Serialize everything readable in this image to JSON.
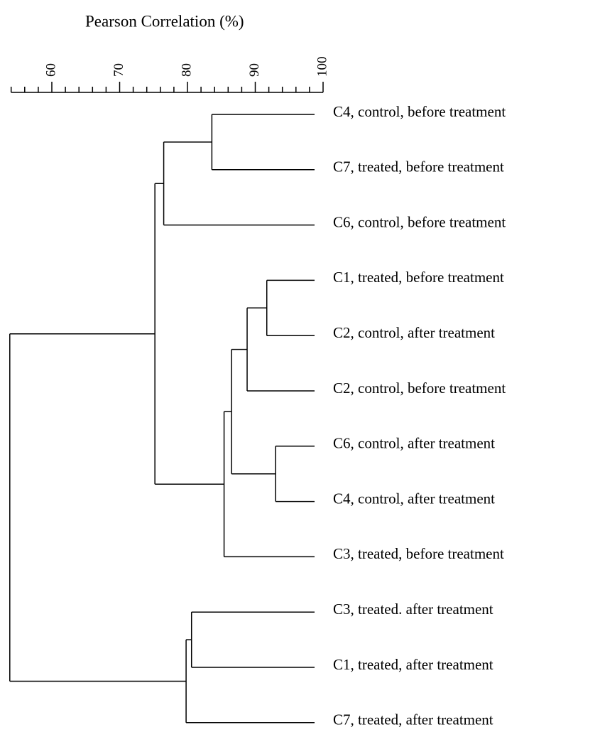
{
  "chart_data": {
    "type": "dendrogram",
    "title": "Pearson Correlation (%)",
    "xlim": [
      54,
      100
    ],
    "xticks": [
      60,
      70,
      80,
      90,
      100
    ],
    "xminorticks": [
      54,
      56,
      58,
      62,
      64,
      66,
      68,
      72,
      74,
      76,
      78,
      82,
      84,
      86,
      88,
      92,
      94,
      96,
      98
    ],
    "color": "#000000",
    "tree": {
      "height": 53.8,
      "children": [
        {
          "height": 75.2,
          "children": [
            {
              "height": 76.5,
              "children": [
                {
                  "height": 83.6,
                  "children": [
                    {
                      "label": "C4, control, before treatment"
                    },
                    {
                      "label": "C7, treated, before treatment"
                    }
                  ]
                },
                {
                  "label": "C6, control, before treatment"
                }
              ]
            },
            {
              "height": 85.4,
              "children": [
                {
                  "height": 86.5,
                  "children": [
                    {
                      "height": 88.8,
                      "children": [
                        {
                          "height": 91.7,
                          "children": [
                            {
                              "label": "C1, treated, before treatment"
                            },
                            {
                              "label": "C2, control, after treatment"
                            }
                          ]
                        },
                        {
                          "label": "C2, control, before treatment"
                        }
                      ]
                    },
                    {
                      "height": 93.0,
                      "children": [
                        {
                          "label": "C6, control, after treatment"
                        },
                        {
                          "label": "C4, control, after treatment"
                        }
                      ]
                    }
                  ]
                },
                {
                  "label": "C3, treated, before treatment"
                }
              ]
            }
          ]
        },
        {
          "height": 79.8,
          "children": [
            {
              "height": 80.6,
              "children": [
                {
                  "label": "C3, treated. after treatment"
                },
                {
                  "label": "C1, treated, after treatment"
                }
              ]
            },
            {
              "label": "C7, treated, after treatment"
            }
          ]
        }
      ]
    }
  }
}
